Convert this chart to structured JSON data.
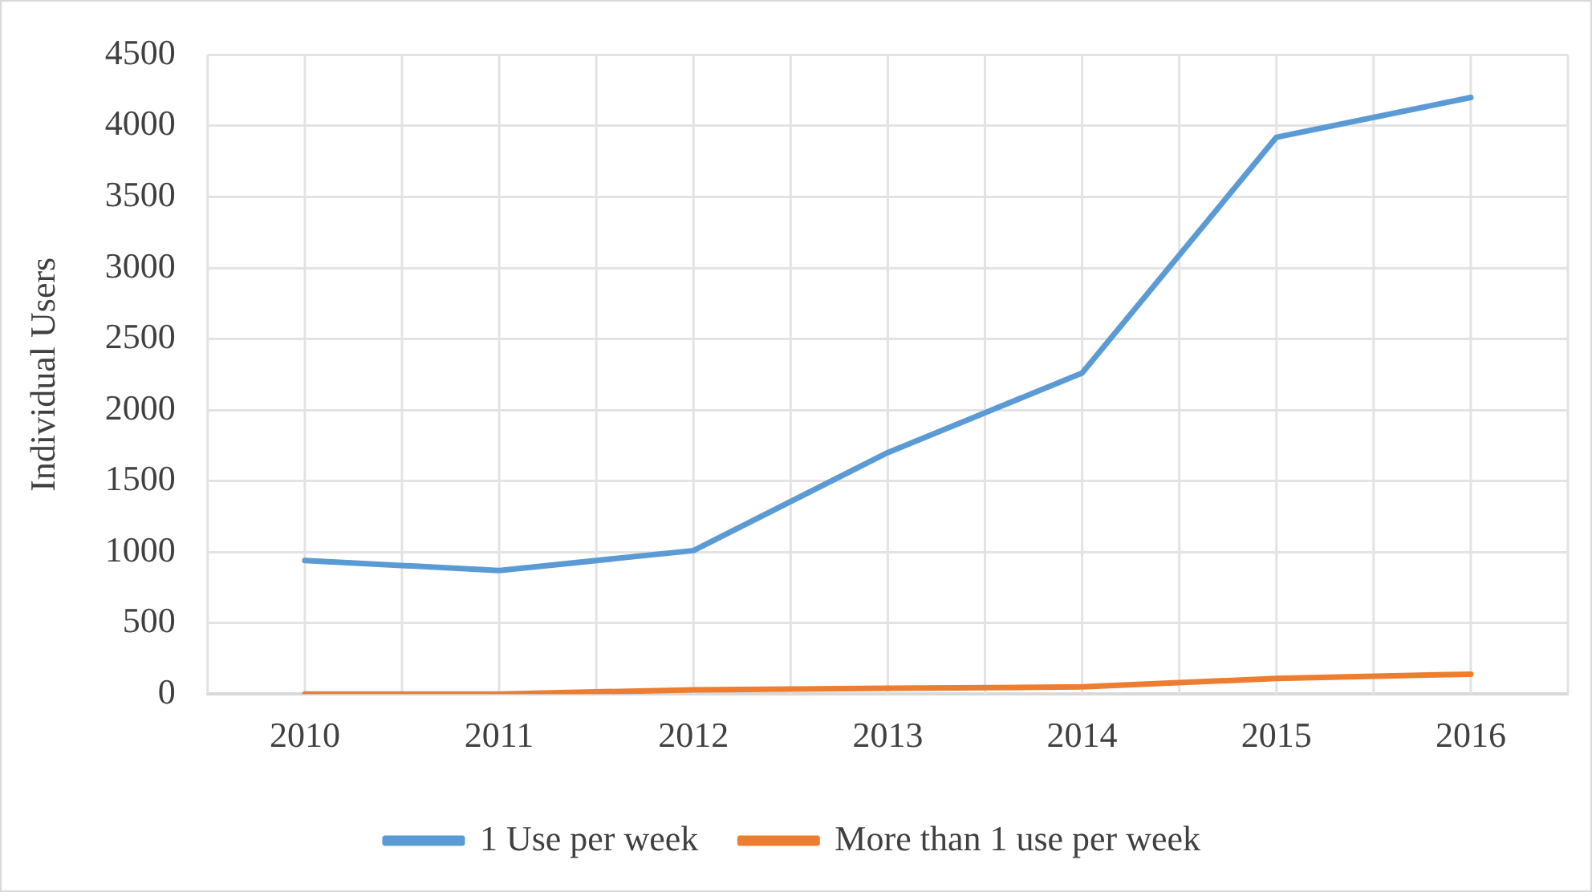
{
  "chart_data": {
    "type": "line",
    "ylabel": "Individual Users",
    "categories": [
      "2010",
      "2011",
      "2012",
      "2013",
      "2014",
      "2015",
      "2016"
    ],
    "series": [
      {
        "name": "1 Use per week",
        "color": "#5b9bd5",
        "values": [
          940,
          870,
          1010,
          1700,
          2260,
          3920,
          4200
        ]
      },
      {
        "name": "More than 1 use per week",
        "color": "#ed7d31",
        "values": [
          0,
          0,
          30,
          40,
          50,
          110,
          140
        ]
      }
    ],
    "ylim": [
      0,
      4500
    ],
    "yticks": [
      0,
      500,
      1000,
      1500,
      2000,
      2500,
      3000,
      3500,
      4000,
      4500
    ],
    "grid": true,
    "legend": "bottom",
    "marker": "none",
    "line_style": "solid"
  }
}
